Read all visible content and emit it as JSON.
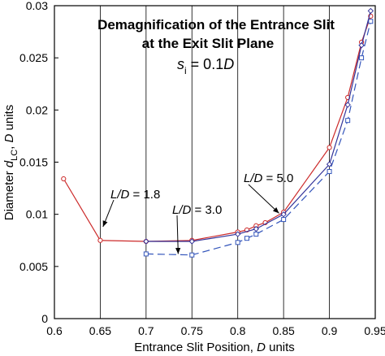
{
  "chart_data": {
    "type": "line",
    "title_line1": "Demagnification of the Entrance Slit",
    "title_line2": "at the Exit Slit Plane",
    "subtitle_var": "s",
    "subtitle_sub": "i",
    "subtitle_rest": " = 0.1",
    "subtitle_unit": "D",
    "xlabel": "Entrance Slit Position, ",
    "xlabel_unit": "D",
    "xlabel_tail": " units",
    "ylabel": "Diameter ",
    "ylabel_var": "d",
    "ylabel_sub": "LC",
    "ylabel_tail_sep": ", ",
    "ylabel_unit": "D",
    "ylabel_tail": " units",
    "xlim": [
      0.6,
      0.95
    ],
    "ylim": [
      0,
      0.03
    ],
    "xticks": [
      "0.6",
      "0.65",
      "0.7",
      "0.75",
      "0.8",
      "0.85",
      "0.9",
      "0.95"
    ],
    "yticks": [
      "0",
      "0.005",
      "0.01",
      "0.015",
      "0.02",
      "0.025",
      "0.03"
    ],
    "grid": "vertical",
    "series": [
      {
        "color": "#cc2a2a",
        "dash": "solid",
        "marker": "circle",
        "points": [
          [
            0.61,
            0.0134
          ],
          [
            0.65,
            0.0075
          ],
          [
            0.7,
            0.0074
          ],
          [
            0.75,
            0.0075
          ],
          [
            0.8,
            0.0083
          ],
          [
            0.81,
            0.0085
          ],
          [
            0.82,
            0.0089
          ],
          [
            0.83,
            0.0092
          ],
          [
            0.85,
            0.0102
          ],
          [
            0.9,
            0.0164
          ],
          [
            0.92,
            0.0212
          ],
          [
            0.935,
            0.0265
          ],
          [
            0.945,
            0.029
          ]
        ]
      },
      {
        "color": "#3355bb",
        "dash": "dashed",
        "marker": "square",
        "points": [
          [
            0.7,
            0.0062
          ],
          [
            0.75,
            0.0061
          ],
          [
            0.8,
            0.0073
          ],
          [
            0.81,
            0.0077
          ],
          [
            0.82,
            0.0081
          ],
          [
            0.85,
            0.0095
          ],
          [
            0.9,
            0.0141
          ],
          [
            0.92,
            0.019
          ],
          [
            0.935,
            0.025
          ],
          [
            0.945,
            0.0285
          ]
        ]
      },
      {
        "color": "#333399",
        "dash": "solid",
        "marker": "diamond",
        "points": [
          [
            0.7,
            0.0074
          ],
          [
            0.75,
            0.0074
          ],
          [
            0.8,
            0.0081
          ],
          [
            0.82,
            0.0086
          ],
          [
            0.85,
            0.01
          ],
          [
            0.9,
            0.0148
          ],
          [
            0.92,
            0.0205
          ],
          [
            0.935,
            0.0262
          ],
          [
            0.945,
            0.0295
          ]
        ]
      }
    ],
    "annotations": [
      {
        "var": "L/D",
        "text": " = 1.8",
        "tip": [
          0.653,
          0.0088
        ]
      },
      {
        "var": "L/D",
        "text": " = 3.0",
        "tip": [
          0.735,
          0.0062
        ]
      },
      {
        "var": "L/D",
        "text": " = 5.0",
        "tip": [
          0.845,
          0.0101
        ]
      }
    ]
  }
}
